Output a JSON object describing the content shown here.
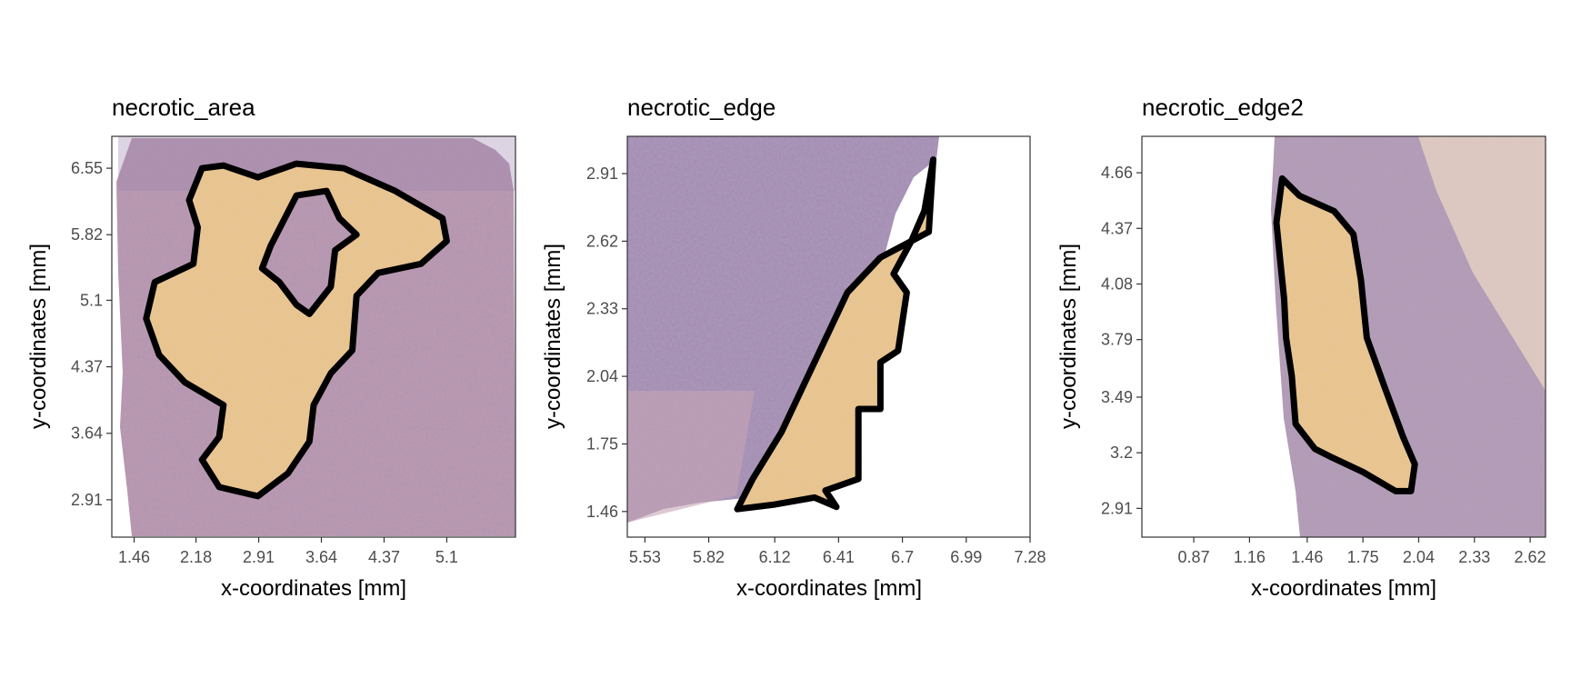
{
  "chart_data": [
    {
      "type": "image",
      "title": "necrotic_area",
      "xlabel": "x-coordinates [mm]",
      "ylabel": "y-coordinates [mm]",
      "x_ticks": [
        "1.46",
        "2.18",
        "2.91",
        "3.64",
        "4.37",
        "5.1"
      ],
      "y_ticks": [
        "6.55",
        "5.82",
        "5.1",
        "4.37",
        "3.64",
        "2.91"
      ],
      "xlim": [
        1.2,
        5.9
      ],
      "ylim": [
        2.5,
        6.9
      ],
      "region_label": "necrotic_area",
      "outline_color": "#000000",
      "region_fill": "#e8c48e",
      "tissue_colors": [
        "#c8a3b8",
        "#7e6a9e"
      ],
      "outline_points": [
        [
          2.25,
          6.55
        ],
        [
          2.5,
          6.58
        ],
        [
          2.9,
          6.45
        ],
        [
          3.35,
          6.6
        ],
        [
          3.9,
          6.55
        ],
        [
          4.5,
          6.3
        ],
        [
          5.05,
          6.0
        ],
        [
          5.1,
          5.75
        ],
        [
          4.8,
          5.5
        ],
        [
          4.3,
          5.4
        ],
        [
          4.05,
          5.15
        ],
        [
          4.0,
          4.55
        ],
        [
          3.75,
          4.3
        ],
        [
          3.55,
          3.95
        ],
        [
          3.5,
          3.55
        ],
        [
          3.25,
          3.2
        ],
        [
          2.9,
          2.95
        ],
        [
          2.45,
          3.05
        ],
        [
          2.25,
          3.35
        ],
        [
          2.45,
          3.6
        ],
        [
          2.5,
          3.95
        ],
        [
          2.05,
          4.2
        ],
        [
          1.75,
          4.5
        ],
        [
          1.6,
          4.9
        ],
        [
          1.7,
          5.3
        ],
        [
          2.15,
          5.5
        ],
        [
          2.2,
          5.9
        ],
        [
          2.1,
          6.2
        ]
      ],
      "hole_points": [
        [
          3.35,
          6.25
        ],
        [
          3.7,
          6.3
        ],
        [
          3.85,
          6.0
        ],
        [
          4.05,
          5.82
        ],
        [
          3.8,
          5.65
        ],
        [
          3.75,
          5.25
        ],
        [
          3.5,
          4.95
        ],
        [
          3.35,
          5.05
        ],
        [
          3.15,
          5.3
        ],
        [
          2.95,
          5.45
        ],
        [
          3.05,
          5.7
        ]
      ]
    },
    {
      "type": "image",
      "title": "necrotic_edge",
      "xlabel": "x-coordinates [mm]",
      "ylabel": "y-coordinates [mm]",
      "x_ticks": [
        "5.53",
        "5.82",
        "6.12",
        "6.41",
        "6.7",
        "6.99",
        "7.28"
      ],
      "y_ticks": [
        "2.91",
        "2.62",
        "2.33",
        "2.04",
        "1.75",
        "1.46"
      ],
      "xlim": [
        5.45,
        7.28
      ],
      "ylim": [
        1.35,
        3.07
      ],
      "region_label": "necrotic_edge",
      "outline_color": "#000000",
      "region_fill": "#e8c48e",
      "tissue_colors": [
        "#c8a3b8",
        "#7e6a9e"
      ],
      "outline_points": [
        [
          5.95,
          1.47
        ],
        [
          6.12,
          1.49
        ],
        [
          6.3,
          1.52
        ],
        [
          6.4,
          1.48
        ],
        [
          6.35,
          1.55
        ],
        [
          6.5,
          1.6
        ],
        [
          6.5,
          1.9
        ],
        [
          6.6,
          1.9
        ],
        [
          6.6,
          2.1
        ],
        [
          6.68,
          2.15
        ],
        [
          6.72,
          2.4
        ],
        [
          6.66,
          2.48
        ],
        [
          6.74,
          2.62
        ],
        [
          6.8,
          2.75
        ],
        [
          6.84,
          2.97
        ],
        [
          6.82,
          2.66
        ],
        [
          6.7,
          2.6
        ],
        [
          6.6,
          2.55
        ],
        [
          6.45,
          2.4
        ],
        [
          6.3,
          2.1
        ],
        [
          6.15,
          1.8
        ],
        [
          6.02,
          1.6
        ]
      ]
    },
    {
      "type": "image",
      "title": "necrotic_edge2",
      "xlabel": "x-coordinates [mm]",
      "ylabel": "y-coordinates [mm]",
      "x_ticks": [
        "0.87",
        "1.16",
        "1.46",
        "1.75",
        "2.04",
        "2.33",
        "2.62"
      ],
      "y_ticks": [
        "4.66",
        "4.37",
        "4.08",
        "3.79",
        "3.49",
        "3.2",
        "2.91"
      ],
      "xlim": [
        0.6,
        2.7
      ],
      "ylim": [
        2.76,
        4.85
      ],
      "region_label": "necrotic_edge2",
      "outline_color": "#000000",
      "region_fill": "#e8c48e",
      "tissue_colors": [
        "#c8a3b8",
        "#7e6a9e"
      ],
      "outline_points": [
        [
          1.33,
          4.63
        ],
        [
          1.42,
          4.54
        ],
        [
          1.6,
          4.46
        ],
        [
          1.7,
          4.34
        ],
        [
          1.74,
          4.1
        ],
        [
          1.77,
          3.8
        ],
        [
          1.86,
          3.55
        ],
        [
          1.96,
          3.28
        ],
        [
          2.02,
          3.14
        ],
        [
          2.0,
          3.0
        ],
        [
          1.92,
          3.0
        ],
        [
          1.75,
          3.1
        ],
        [
          1.58,
          3.18
        ],
        [
          1.5,
          3.22
        ],
        [
          1.4,
          3.35
        ],
        [
          1.38,
          3.6
        ],
        [
          1.35,
          3.8
        ],
        [
          1.34,
          4.0
        ],
        [
          1.32,
          4.2
        ],
        [
          1.3,
          4.4
        ]
      ]
    }
  ]
}
